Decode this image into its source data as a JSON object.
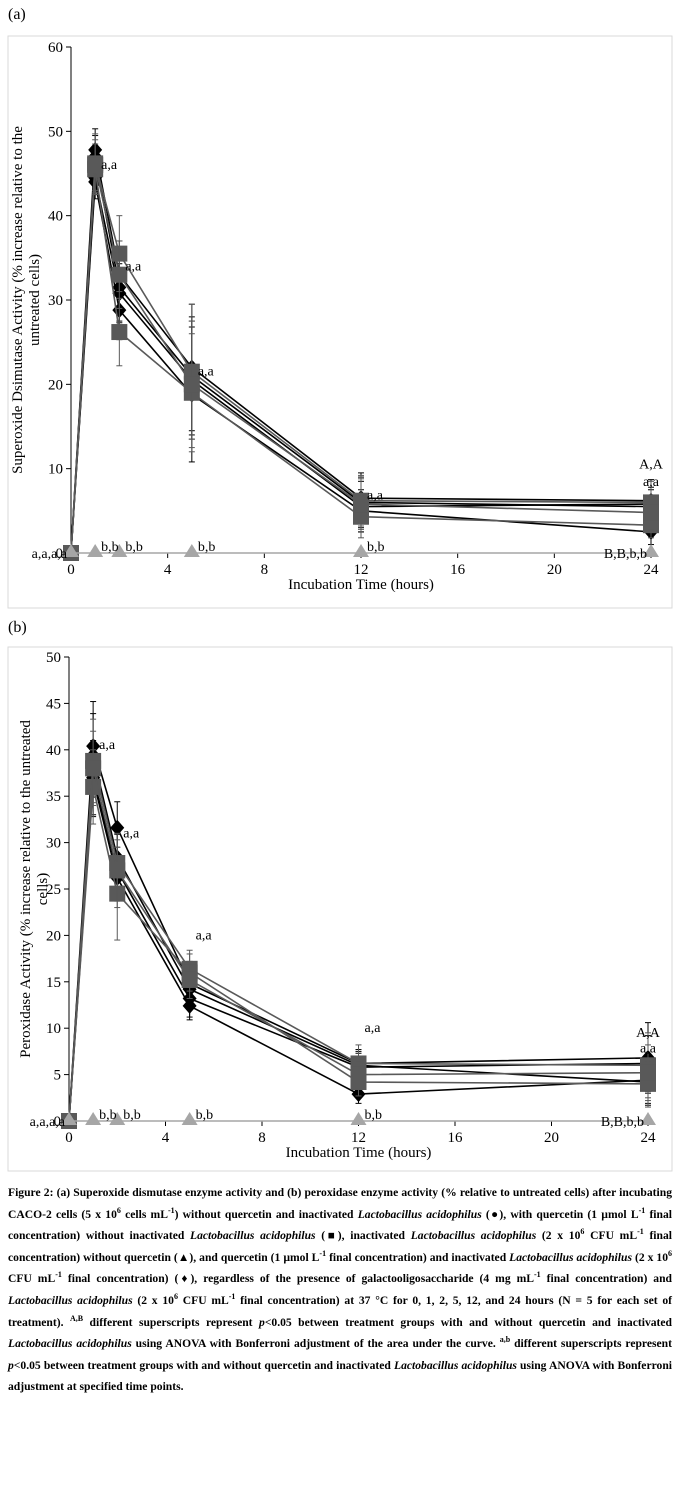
{
  "figure": {
    "caption_parts": [
      "Figure 2: (a) Superoxide dismutase enzyme activity and (b) peroxidase enzyme activity (% relative to untreated cells) after incubating CACO-2 cells (5 x 10",
      "6",
      " cells mL",
      "-1",
      ") without quercetin and inactivated ",
      "Lactobacillus acidophilus",
      " (●), with quercetin (1 µmol L",
      "-1",
      " final concentration) without inactivated ",
      "Lactobacillus acidophilus",
      " (■), inactivated ",
      "Lactobacillus acidophilus",
      " (2 x 10",
      "6",
      " CFU mL",
      "-1",
      " final concentration) without quercetin (▲), and quercetin (1 µmol L",
      "-1",
      " final concentration) and inactivated ",
      "Lactobacillus acidophilus",
      " (2 x 10",
      "6",
      " CFU mL",
      "-1",
      " final concentration) (♦), regardless of the presence of galactooligosaccharide (4 mg mL",
      "-1",
      " final concentration) and ",
      "Lactobacillus acidophilus",
      " (2 x 10",
      "6",
      " CFU mL",
      "-1",
      " final concentration) at 37 °C for 0, 1, 2, 5, 12, and 24 hours (N = 5 for each set of treatment). ",
      "A,B",
      " different superscripts represent ",
      "p",
      "<0.05 between treatment groups with and without quercetin and inactivated ",
      "Lactobacillus acidophilus",
      " using ANOVA with Bonferroni adjustment of the area under the curve. ",
      "a,b",
      " different superscripts represent ",
      "p",
      "<0.05 between treatment groups with and without quercetin and inactivated ",
      "Lactobacillus acidophilus",
      " using ANOVA with Bonferroni adjustment at specified time points."
    ]
  },
  "colors": {
    "black_series": "#000000",
    "square_series": "#595959",
    "triangle_series": "#a6a6a6"
  },
  "chart_data": [
    {
      "panel_label": "(a)",
      "type": "line",
      "xlabel": "Incubation Time (hours)",
      "ylabel_lines": [
        "Superoxide Dsimutase Activity (% increase relative to the",
        "untreated cells)"
      ],
      "xlim": [
        0,
        24
      ],
      "ylim": [
        0,
        60
      ],
      "xticks": [
        0,
        4,
        8,
        12,
        16,
        20,
        24
      ],
      "yticks": [
        0,
        10,
        20,
        30,
        40,
        50,
        60
      ],
      "grid": false,
      "x": [
        0,
        1,
        2,
        5,
        12,
        24
      ],
      "series": [
        {
          "marker": "diamond",
          "color": "#000000",
          "values": [
            0,
            47.8,
            33.0,
            22.0,
            6.5,
            6.2
          ],
          "err": [
            0,
            2.5,
            4.0,
            7.5,
            3.0,
            2.5
          ]
        },
        {
          "marker": "diamond",
          "color": "#000000",
          "values": [
            0,
            47.0,
            31.5,
            21.0,
            6.0,
            5.5
          ],
          "err": [
            0,
            2.5,
            4.0,
            7.0,
            3.0,
            2.0
          ]
        },
        {
          "marker": "diamond",
          "color": "#000000",
          "values": [
            0,
            44.5,
            30.8,
            20.5,
            5.5,
            5.8
          ],
          "err": [
            0,
            2.0,
            3.5,
            7.0,
            3.0,
            2.0
          ]
        },
        {
          "marker": "diamond",
          "color": "#000000",
          "values": [
            0,
            44.0,
            28.8,
            18.8,
            5.0,
            2.5
          ],
          "err": [
            0,
            2.0,
            3.5,
            8.0,
            2.5,
            1.5
          ]
        },
        {
          "marker": "square",
          "color": "#595959",
          "values": [
            0,
            46.2,
            35.5,
            21.5,
            6.2,
            6.0
          ],
          "err": [
            0,
            3.5,
            4.5,
            8.0,
            3.0,
            2.5
          ]
        },
        {
          "marker": "square",
          "color": "#595959",
          "values": [
            0,
            45.5,
            26.2,
            19.0,
            4.3,
            3.3
          ],
          "err": [
            0,
            3.0,
            4.0,
            7.0,
            2.5,
            1.5
          ]
        },
        {
          "marker": "square",
          "color": "#595959",
          "values": [
            0,
            46.0,
            33.0,
            20.0,
            5.8,
            4.8
          ],
          "err": [
            0,
            3.0,
            4.0,
            7.5,
            3.0,
            2.0
          ]
        },
        {
          "marker": "triangle",
          "color": "#a6a6a6",
          "values": [
            0,
            0,
            0,
            0,
            0,
            0
          ],
          "err": [
            0,
            0,
            0,
            0,
            0,
            0
          ]
        }
      ],
      "annotations": [
        {
          "text": "a,a,a,a",
          "x": 0,
          "y": 0,
          "anchor": "end-left-of"
        },
        {
          "text": "a,a",
          "x": 1,
          "y": 46
        },
        {
          "text": "b,b",
          "x": 1,
          "y": 0
        },
        {
          "text": "a,a",
          "x": 2,
          "y": 34
        },
        {
          "text": "b,b",
          "x": 2,
          "y": 0
        },
        {
          "text": "a,a",
          "x": 5,
          "y": 21.5
        },
        {
          "text": "b,b",
          "x": 5,
          "y": 0
        },
        {
          "text": "a,a",
          "x": 12,
          "y": 6.8
        },
        {
          "text": "b,b",
          "x": 12,
          "y": 0
        },
        {
          "text": "A,A",
          "x": 24,
          "y": 10.5
        },
        {
          "text": "a,a",
          "x": 24,
          "y": 8.4
        },
        {
          "text": "B,B,b,b",
          "x": 24,
          "y": 0,
          "anchor": "end-left-of"
        }
      ]
    },
    {
      "panel_label": "(b)",
      "type": "line",
      "xlabel": "Incubation Time (hours)",
      "ylabel_lines": [
        "Peroxidase Activity (% increase relative to the untreated",
        "cells)"
      ],
      "xlim": [
        0,
        24
      ],
      "ylim": [
        0,
        50
      ],
      "xticks": [
        0,
        4,
        8,
        12,
        16,
        20,
        24
      ],
      "yticks": [
        0,
        5,
        10,
        15,
        20,
        25,
        30,
        35,
        40,
        45,
        50
      ],
      "grid": false,
      "x": [
        0,
        1,
        2,
        5,
        12,
        24
      ],
      "series": [
        {
          "marker": "diamond",
          "color": "#000000",
          "values": [
            0,
            40.4,
            31.6,
            14.8,
            6.2,
            6.8
          ],
          "err": [
            0,
            4.8,
            2.8,
            2.0,
            1.5,
            3.8
          ]
        },
        {
          "marker": "diamond",
          "color": "#000000",
          "values": [
            0,
            39.4,
            28.4,
            14.2,
            6.0,
            4.2
          ],
          "err": [
            0,
            4.5,
            2.5,
            2.0,
            1.5,
            2.5
          ]
        },
        {
          "marker": "diamond",
          "color": "#000000",
          "values": [
            0,
            37.0,
            27.0,
            13.2,
            5.8,
            6.2
          ],
          "err": [
            0,
            4.0,
            2.5,
            2.0,
            1.5,
            3.0
          ]
        },
        {
          "marker": "diamond",
          "color": "#000000",
          "values": [
            0,
            36.8,
            26.2,
            12.4,
            2.9,
            4.4
          ],
          "err": [
            0,
            4.0,
            2.5,
            1.5,
            1.0,
            2.5
          ]
        },
        {
          "marker": "square",
          "color": "#595959",
          "values": [
            0,
            38.8,
            27.8,
            16.4,
            6.2,
            6.0
          ],
          "err": [
            0,
            4.5,
            2.5,
            2.0,
            2.0,
            3.5
          ]
        },
        {
          "marker": "square",
          "color": "#595959",
          "values": [
            0,
            36.0,
            24.5,
            16.0,
            4.2,
            4.0
          ],
          "err": [
            0,
            4.0,
            5.0,
            2.0,
            1.5,
            2.5
          ]
        },
        {
          "marker": "square",
          "color": "#595959",
          "values": [
            0,
            38.0,
            27.0,
            15.2,
            5.0,
            5.2
          ],
          "err": [
            0,
            4.0,
            4.0,
            2.0,
            1.5,
            3.0
          ]
        },
        {
          "marker": "triangle",
          "color": "#a6a6a6",
          "values": [
            0,
            0,
            0,
            0,
            0,
            0
          ],
          "err": [
            0,
            0,
            0,
            0,
            0,
            0
          ]
        }
      ],
      "annotations": [
        {
          "text": "a,a,a,a",
          "x": 0,
          "y": 0,
          "anchor": "end-left-of"
        },
        {
          "text": "a,a",
          "x": 1,
          "y": 40.5
        },
        {
          "text": "b,b",
          "x": 1,
          "y": 0
        },
        {
          "text": "a,a",
          "x": 2,
          "y": 31.0
        },
        {
          "text": "b,b",
          "x": 2,
          "y": 0
        },
        {
          "text": "a,a",
          "x": 5,
          "y": 20.0
        },
        {
          "text": "b,b",
          "x": 5,
          "y": 0
        },
        {
          "text": "a,a",
          "x": 12,
          "y": 10.0
        },
        {
          "text": "b,b",
          "x": 12,
          "y": 0
        },
        {
          "text": "A,A",
          "x": 24,
          "y": 9.5
        },
        {
          "text": "a,a",
          "x": 24,
          "y": 7.8
        },
        {
          "text": "B,B,b,b",
          "x": 24,
          "y": 0,
          "anchor": "end-left-of"
        }
      ]
    }
  ]
}
